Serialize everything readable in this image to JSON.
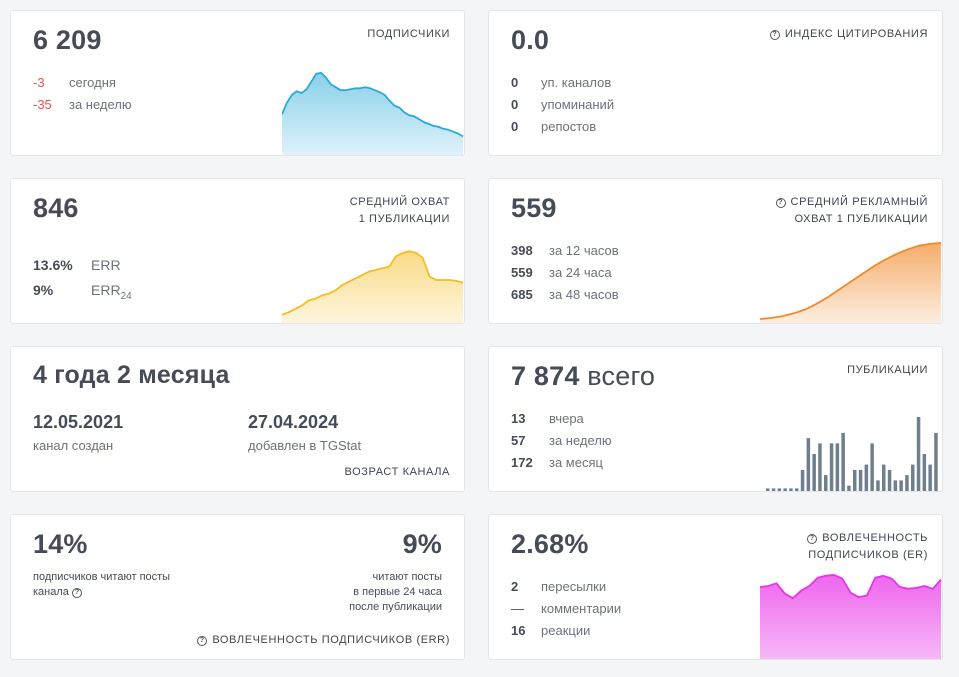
{
  "subscribers": {
    "value": "6 209",
    "title": "ПОДПИСЧИКИ",
    "rows": [
      {
        "num": "-3",
        "label": "сегодня"
      },
      {
        "num": "-35",
        "label": "за неделю"
      }
    ],
    "chart_data": {
      "type": "area",
      "values": [
        38,
        50,
        58,
        62,
        60,
        64,
        72,
        80,
        81,
        76,
        69,
        66,
        63,
        63,
        64,
        65,
        65,
        66,
        65,
        63,
        61,
        58,
        52,
        47,
        45,
        40,
        37,
        36,
        33,
        30,
        28,
        26,
        25,
        23,
        22,
        20,
        18,
        15
      ],
      "color": "#29a9d8"
    }
  },
  "citation": {
    "value": "0.0",
    "title": "ИНДЕКС ЦИТИРОВАНИЯ",
    "rows": [
      {
        "num": "0",
        "label": "уп. каналов"
      },
      {
        "num": "0",
        "label": "упоминаний"
      },
      {
        "num": "0",
        "label": "репостов"
      }
    ]
  },
  "reach": {
    "value": "846",
    "title_line1": "СРЕДНИЙ ОХВАТ",
    "title_line2": "1 ПУБЛИКАЦИИ",
    "err_value": "13.6%",
    "err_label": "ERR",
    "err24_value": "9%",
    "err24_label": "ERR",
    "err24_sub": "24",
    "chart_data": {
      "type": "area",
      "values": [
        5,
        8,
        12,
        16,
        22,
        24,
        28,
        30,
        34,
        40,
        44,
        48,
        52,
        56,
        58,
        60,
        62,
        74,
        78,
        80,
        78,
        72,
        50,
        46,
        46,
        46,
        45,
        43
      ],
      "color": "#f4bd22"
    }
  },
  "ad_reach": {
    "value": "559",
    "title_line1": "СРЕДНИЙ РЕКЛАМНЫЙ",
    "title_line2": "ОХВАТ 1 ПУБЛИКАЦИИ",
    "rows": [
      {
        "num": "398",
        "label": "за 12 часов"
      },
      {
        "num": "559",
        "label": "за 24 часа"
      },
      {
        "num": "685",
        "label": "за 48 часов"
      }
    ],
    "chart_data": {
      "type": "area",
      "values": [
        0,
        1,
        3,
        6,
        10,
        16,
        23,
        31,
        39,
        47,
        55,
        62,
        68,
        73,
        77,
        79,
        80
      ],
      "color": "#f08a2c"
    }
  },
  "age": {
    "value": "4 года 2 месяца",
    "created_date": "12.05.2021",
    "created_label": "канал создан",
    "added_date": "27.04.2024",
    "added_label": "добавлен в TGStat",
    "title": "ВОЗРАСТ КАНАЛА"
  },
  "publications": {
    "value": "7 874",
    "value_suffix": "всего",
    "title": "ПУБЛИКАЦИИ",
    "rows": [
      {
        "num": "13",
        "label": "вчера"
      },
      {
        "num": "57",
        "label": "за неделю"
      },
      {
        "num": "172",
        "label": "за месяц"
      }
    ],
    "chart_data": {
      "type": "bar",
      "values": [
        0.5,
        0.5,
        0.5,
        0.5,
        0.5,
        0.5,
        4,
        10,
        7,
        9,
        3,
        9,
        9,
        11,
        1,
        4,
        4,
        5,
        9,
        2,
        5,
        4,
        2,
        2,
        3,
        5,
        14,
        7,
        5,
        11
      ],
      "color": "#6f7f8e"
    }
  },
  "err_card": {
    "value_left": "14%",
    "text_left_line1": "подписчиков читают посты",
    "text_left_line2": "канала",
    "value_right": "9%",
    "text_right_line1": "читают посты",
    "text_right_line2": "в первые 24 часа",
    "text_right_line3": "после публикации",
    "title": "ВОВЛЕЧЕННОСТЬ ПОДПИСЧИКОВ (ERR)"
  },
  "er": {
    "value": "2.68%",
    "title_line1": "ВОВЛЕЧЕННОСТЬ",
    "title_line2": "ПОДПИСЧИКОВ (ER)",
    "rows": [
      {
        "num": "2",
        "label": "пересылки"
      },
      {
        "num": "—",
        "label": "комментарии"
      },
      {
        "num": "16",
        "label": "реакции"
      }
    ],
    "chart_data": {
      "type": "area",
      "values": [
        73,
        74,
        77,
        66,
        61,
        69,
        74,
        83,
        85,
        86,
        82,
        67,
        62,
        64,
        83,
        85,
        82,
        73,
        71,
        72,
        74,
        71,
        81
      ],
      "color": "#e833e8"
    }
  }
}
